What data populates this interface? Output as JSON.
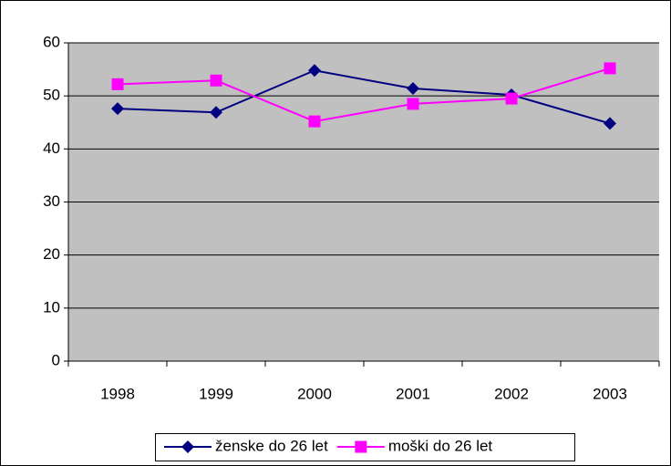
{
  "chart_data": {
    "type": "line",
    "categories": [
      "1998",
      "1999",
      "2000",
      "2001",
      "2002",
      "2003"
    ],
    "series": [
      {
        "name": "ženske do 26 let",
        "color": "#000080",
        "marker": "diamond",
        "values": [
          47.6,
          46.9,
          54.8,
          51.4,
          50.2,
          44.8
        ]
      },
      {
        "name": "moški do 26 let",
        "color": "#ff00ff",
        "marker": "square",
        "values": [
          52.2,
          52.9,
          45.2,
          48.5,
          49.5,
          55.2
        ]
      }
    ],
    "ylim": [
      0,
      60
    ],
    "yticks": [
      0,
      10,
      20,
      30,
      40,
      50,
      60
    ],
    "grid": true,
    "legend": "bottom"
  }
}
